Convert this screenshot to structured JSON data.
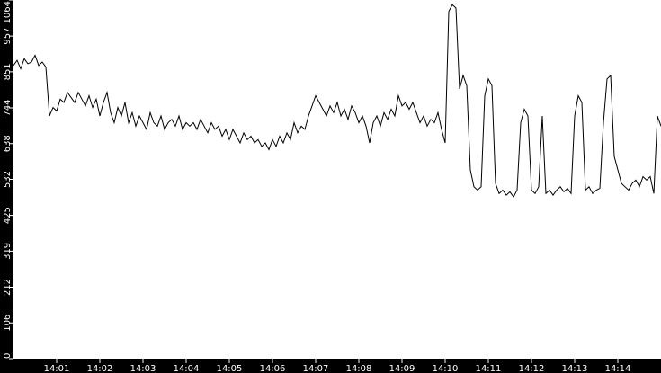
{
  "chart_data": {
    "type": "line",
    "title": "",
    "xlabel": "",
    "ylabel": "",
    "ylim": [
      0,
      1064
    ],
    "xlim": [
      "14:00:00",
      "14:15:00"
    ],
    "y_ticks": [
      "0",
      "106",
      "212",
      "319",
      "425",
      "532",
      "638",
      "744",
      "851",
      "957",
      "1064"
    ],
    "x_ticks": [
      "14:01",
      "14:02",
      "14:03",
      "14:04",
      "14:05",
      "14:06",
      "14:07",
      "14:08",
      "14:09",
      "14:10",
      "14:11",
      "14:12",
      "14:13",
      "14:14"
    ],
    "grid": false,
    "legend": "none",
    "colors": {
      "background": "#000000",
      "plot": "#ffffff",
      "line": "#000000",
      "axis_text": "#ffffff"
    },
    "sample_interval_seconds": 5,
    "series": [
      {
        "start": "14:00:00",
        "values": [
          870,
          885,
          860,
          890,
          875,
          880,
          900,
          870,
          880,
          865,
          720,
          745,
          735,
          770,
          760,
          790,
          775,
          760,
          790,
          770,
          750,
          780,
          745,
          770,
          720,
          760,
          790,
          730,
          700,
          745,
          720,
          760,
          700,
          730,
          690,
          720,
          700,
          680,
          730,
          700,
          690,
          720,
          680,
          700,
          710,
          690,
          720,
          680,
          700,
          690,
          700,
          680,
          710,
          690,
          670,
          700,
          680,
          690,
          660,
          680,
          650,
          680,
          660,
          640,
          670,
          650,
          660,
          640,
          650,
          630,
          640,
          620,
          650,
          630,
          660,
          640,
          670,
          650,
          700,
          670,
          690,
          680,
          720,
          750,
          780,
          760,
          740,
          720,
          750,
          730,
          760,
          720,
          740,
          710,
          750,
          730,
          700,
          720,
          690,
          640,
          700,
          720,
          690,
          730,
          710,
          740,
          720,
          780,
          750,
          760,
          740,
          760,
          730,
          700,
          720,
          690,
          710,
          700,
          730,
          680,
          640,
          1030,
          1050,
          1040,
          800,
          840,
          810,
          560,
          510,
          500,
          510,
          780,
          830,
          810,
          520,
          490,
          500,
          485,
          495,
          480,
          500,
          700,
          740,
          720,
          500,
          490,
          510,
          720,
          490,
          500,
          485,
          500,
          510,
          495,
          505,
          490,
          720,
          780,
          760,
          500,
          510,
          490,
          500,
          505,
          700,
          830,
          840,
          600,
          560,
          520,
          510,
          500,
          520,
          530,
          510,
          540,
          530,
          540,
          490,
          720,
          690
        ]
      }
    ]
  }
}
